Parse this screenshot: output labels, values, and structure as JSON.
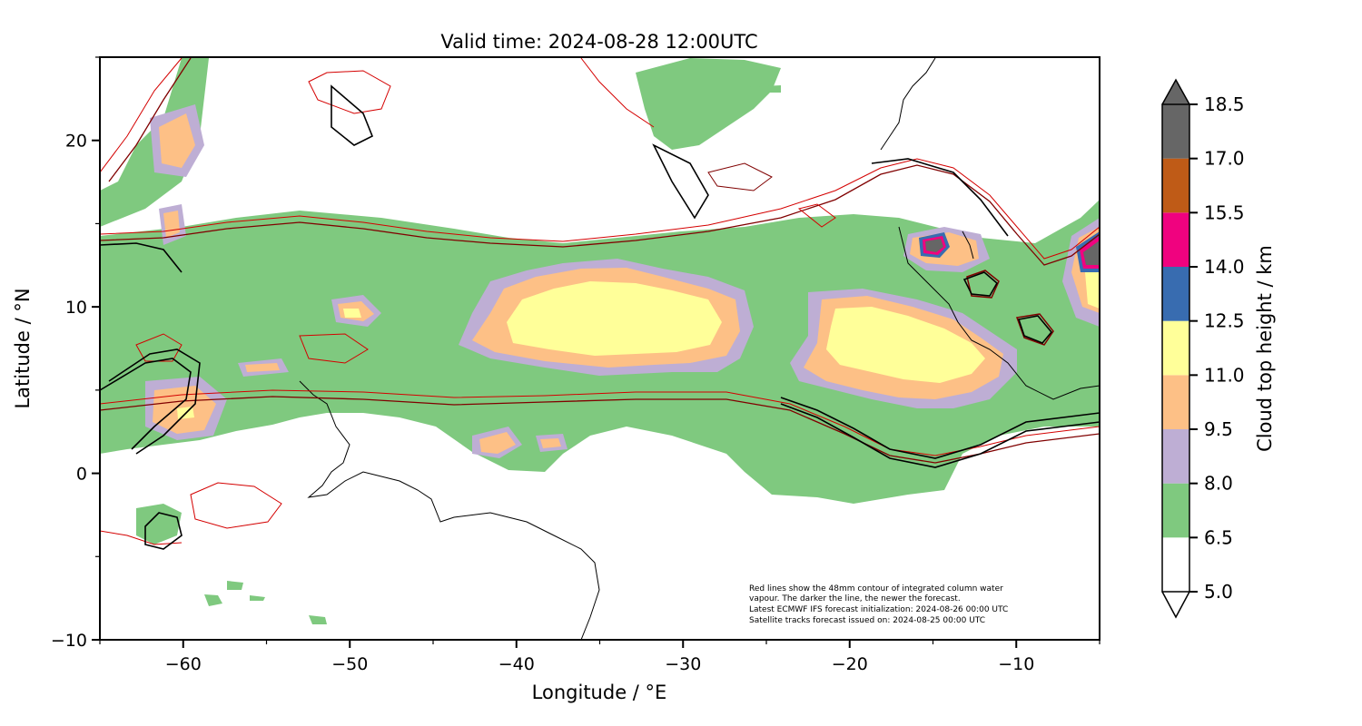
{
  "title": "Valid time: 2024-08-28 12:00UTC",
  "xlabel": "Longitude / °E",
  "ylabel": "Latitude / °N",
  "xticks": [
    "−60",
    "−50",
    "−40",
    "−30",
    "−20",
    "−10"
  ],
  "yticks": [
    "20",
    "10",
    "0",
    "−10"
  ],
  "annotation": [
    "Red lines show the 48mm contour of integrated column water",
    "vapour. The darker the line, the newer the forecast.",
    "Latest ECMWF IFS forecast initialization: 2024-08-26 00:00 UTC",
    "Satellite tracks forecast issued on: 2024-08-25 00:00 UTC"
  ],
  "colorbar": {
    "label": "Cloud top height / km",
    "ticks": [
      "18.5",
      "17.0",
      "15.5",
      "14.0",
      "12.5",
      "11.0",
      "9.5",
      "8.0",
      "6.5",
      "5.0"
    ],
    "bins": [
      {
        "from": 5.0,
        "to": 6.5,
        "color": "#ffffff"
      },
      {
        "from": 6.5,
        "to": 8.0,
        "color": "#7fc97f"
      },
      {
        "from": 8.0,
        "to": 9.5,
        "color": "#beaed4"
      },
      {
        "from": 9.5,
        "to": 11.0,
        "color": "#fdc086"
      },
      {
        "from": 11.0,
        "to": 12.5,
        "color": "#ffff99"
      },
      {
        "from": 12.5,
        "to": 14.0,
        "color": "#386cb0"
      },
      {
        "from": 14.0,
        "to": 15.5,
        "color": "#f0027f"
      },
      {
        "from": 15.5,
        "to": 17.0,
        "color": "#bf5b17"
      },
      {
        "from": 17.0,
        "to": 18.5,
        "color": "#666666"
      }
    ]
  },
  "chart_data": {
    "type": "heatmap",
    "title": "Valid time: 2024-08-28 12:00UTC",
    "xlabel": "Longitude / °E",
    "ylabel": "Latitude / °N",
    "xlim": [
      -65,
      -5
    ],
    "ylim": [
      -10,
      25
    ],
    "variable": "Cloud top height",
    "units": "km",
    "levels": [
      5.0,
      6.5,
      8.0,
      9.5,
      11.0,
      12.5,
      14.0,
      15.5,
      17.0,
      18.5
    ],
    "colorbar_extend": "both"
  }
}
